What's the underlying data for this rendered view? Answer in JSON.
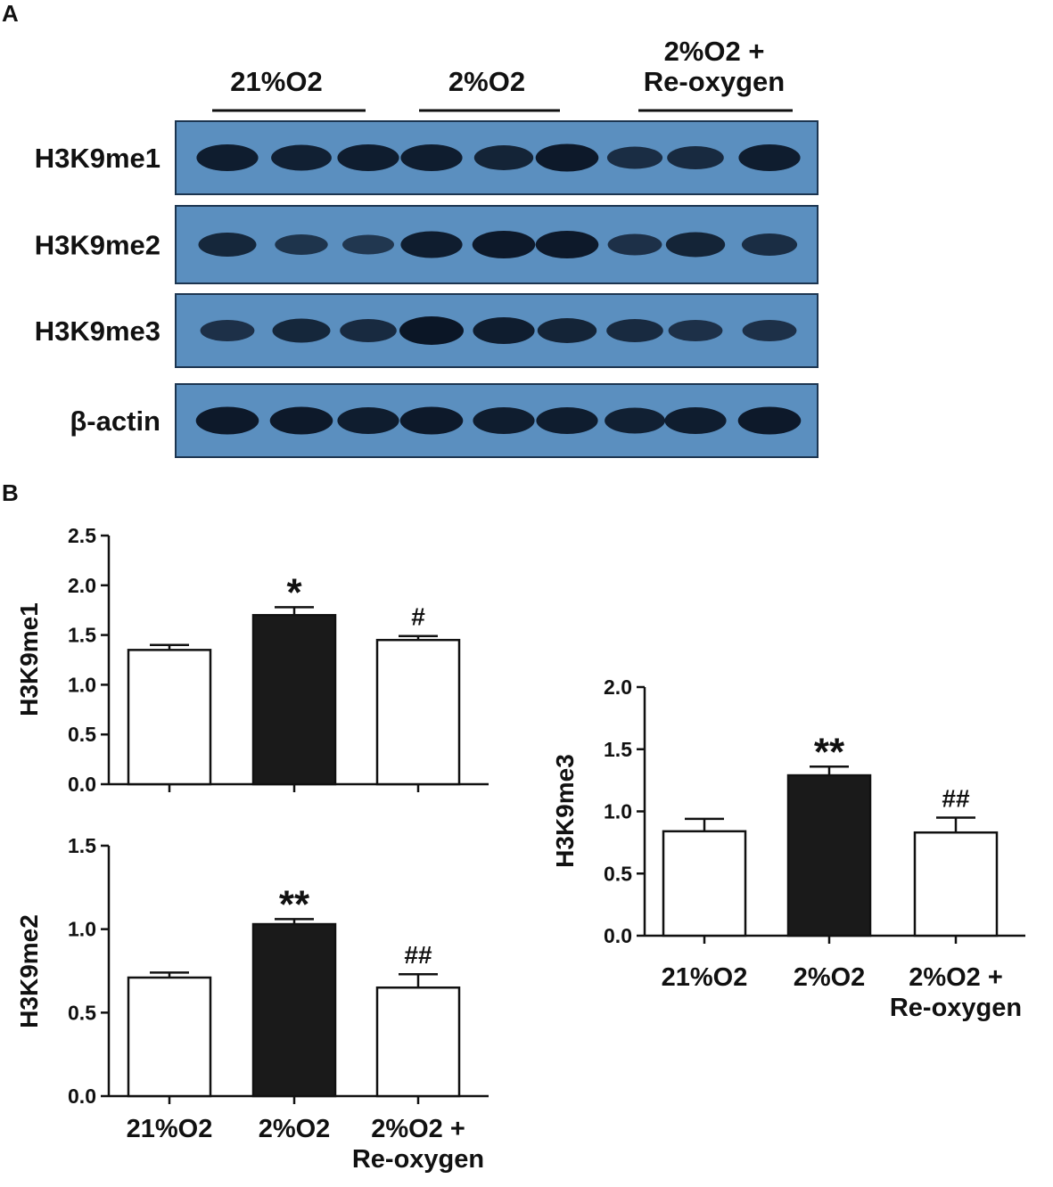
{
  "panels": {
    "a_label": "A",
    "b_label": "B"
  },
  "blot": {
    "groups": [
      {
        "label_lines": [
          "21%O2"
        ]
      },
      {
        "label_lines": [
          "2%O2"
        ]
      },
      {
        "label_lines": [
          "2%O2 +",
          "Re-oxygen"
        ]
      }
    ],
    "rows": [
      {
        "label": "H3K9me1",
        "band_intensity": [
          0.9,
          0.85,
          0.9,
          0.9,
          0.8,
          0.95,
          0.65,
          0.7,
          0.9
        ]
      },
      {
        "label": "H3K9me2",
        "band_intensity": [
          0.75,
          0.55,
          0.5,
          0.9,
          0.95,
          0.95,
          0.6,
          0.8,
          0.65
        ]
      },
      {
        "label": "H3K9me3",
        "band_intensity": [
          0.6,
          0.75,
          0.7,
          1.0,
          0.9,
          0.8,
          0.7,
          0.6,
          0.6
        ]
      },
      {
        "label": "β-actin",
        "band_intensity": [
          0.95,
          0.95,
          0.9,
          0.95,
          0.9,
          0.9,
          0.85,
          0.9,
          0.95
        ]
      }
    ],
    "background_color": "#5b8fbf",
    "band_color": "#0b1626"
  },
  "chart_data": [
    {
      "type": "bar",
      "id": "me1",
      "categories": [
        "21%O2",
        "2%O2",
        "2%O2 + Re-oxygen"
      ],
      "category_lines": [],
      "values": [
        1.35,
        1.7,
        1.45
      ],
      "errors": [
        0.05,
        0.08,
        0.04
      ],
      "annotations": [
        "",
        "*",
        "#"
      ],
      "fill_colors": [
        "#ffffff",
        "#1a1a1a",
        "#ffffff"
      ],
      "ylabel": "H3K9me1",
      "xlabel": "",
      "ylim": [
        0,
        2.5
      ],
      "yticks": [
        "0.0",
        "0.5",
        "1.0",
        "1.5",
        "2.0",
        "2.5"
      ]
    },
    {
      "type": "bar",
      "id": "me2",
      "categories": [
        "21%O2",
        "2%O2",
        "2%O2 + Re-oxygen"
      ],
      "category_lines": [
        [
          "21%O2"
        ],
        [
          "2%O2"
        ],
        [
          "2%O2 +",
          "Re-oxygen"
        ]
      ],
      "values": [
        0.71,
        1.03,
        0.65
      ],
      "errors": [
        0.03,
        0.03,
        0.08
      ],
      "annotations": [
        "",
        "**",
        "##"
      ],
      "fill_colors": [
        "#ffffff",
        "#1a1a1a",
        "#ffffff"
      ],
      "ylabel": "H3K9me2",
      "xlabel": "",
      "ylim": [
        0,
        1.5
      ],
      "yticks": [
        "0.0",
        "0.5",
        "1.0",
        "1.5"
      ]
    },
    {
      "type": "bar",
      "id": "me3",
      "categories": [
        "21%O2",
        "2%O2",
        "2%O2 + Re-oxygen"
      ],
      "category_lines": [
        [
          "21%O2"
        ],
        [
          "2%O2"
        ],
        [
          "2%O2 +",
          "Re-oxygen"
        ]
      ],
      "values": [
        0.84,
        1.29,
        0.83
      ],
      "errors": [
        0.1,
        0.07,
        0.12
      ],
      "annotations": [
        "",
        "**",
        "##"
      ],
      "fill_colors": [
        "#ffffff",
        "#1a1a1a",
        "#ffffff"
      ],
      "ylabel": "H3K9me3",
      "xlabel": "",
      "ylim": [
        0,
        2.0
      ],
      "yticks": [
        "0.0",
        "0.5",
        "1.0",
        "1.5",
        "2.0"
      ]
    }
  ]
}
